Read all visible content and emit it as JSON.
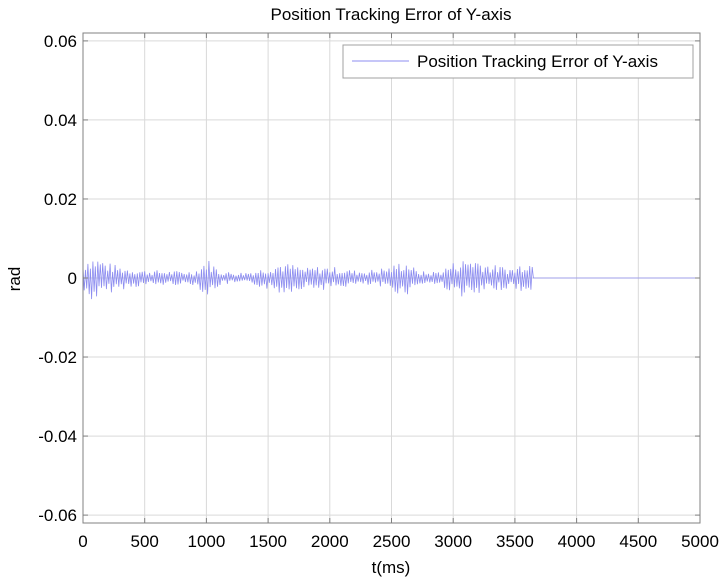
{
  "chart_data": {
    "type": "line",
    "title": "Position Tracking Error of Y-axis",
    "xlabel": "t(ms)",
    "ylabel": "rad",
    "xlim": [
      0,
      5000
    ],
    "ylim": [
      -0.062,
      0.062
    ],
    "xticks": [
      0,
      500,
      1000,
      1500,
      2000,
      2500,
      3000,
      3500,
      4000,
      4500,
      5000
    ],
    "xtick_labels": [
      "0",
      "500",
      "1000",
      "1500",
      "2000",
      "2500",
      "3000",
      "3500",
      "4000",
      "4500",
      "5000"
    ],
    "yticks": [
      0.06,
      0.04,
      0.02,
      0,
      -0.02,
      -0.04,
      -0.06
    ],
    "ytick_labels": [
      "0.06",
      "0.04",
      "0.02",
      "0",
      "-0.02",
      "-0.04",
      "-0.06"
    ],
    "grid": true,
    "legend_position": "top-right",
    "series": [
      {
        "name": "Position Tracking Error of Y-axis",
        "color": "#8c8cf0",
        "x_step": 10,
        "x_start": 0,
        "envelope_x": [
          0,
          50,
          100,
          150,
          200,
          300,
          400,
          500,
          600,
          700,
          800,
          900,
          950,
          1000,
          1050,
          1100,
          1200,
          1300,
          1400,
          1500,
          1600,
          1700,
          1800,
          1900,
          2000,
          2100,
          2200,
          2300,
          2400,
          2500,
          2550,
          2600,
          2650,
          2700,
          2800,
          2900,
          3000,
          3100,
          3150,
          3200,
          3300,
          3400,
          3500,
          3550,
          3600,
          3640,
          3650,
          5000
        ],
        "envelope_amp": [
          0.004,
          0.006,
          0.0055,
          0.005,
          0.004,
          0.003,
          0.0025,
          0.002,
          0.002,
          0.0018,
          0.0018,
          0.0018,
          0.003,
          0.005,
          0.004,
          0.002,
          0.0015,
          0.0015,
          0.002,
          0.003,
          0.004,
          0.0035,
          0.0025,
          0.003,
          0.003,
          0.0025,
          0.002,
          0.002,
          0.0025,
          0.003,
          0.004,
          0.0045,
          0.004,
          0.002,
          0.0015,
          0.002,
          0.004,
          0.005,
          0.0055,
          0.005,
          0.0035,
          0.003,
          0.0025,
          0.004,
          0.005,
          0.004,
          0,
          0
        ]
      }
    ]
  }
}
